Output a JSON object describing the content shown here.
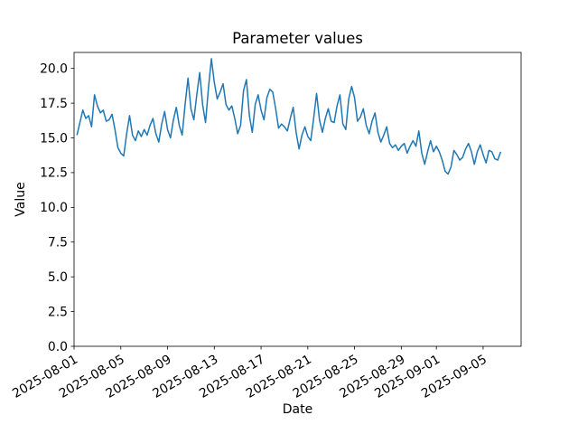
{
  "figure": {
    "background": "#ffffff"
  },
  "chart_data": {
    "type": "line",
    "title": "Parameter values",
    "xlabel": "Date",
    "ylabel": "Value",
    "grid": false,
    "legend": "none",
    "xlim": [
      "2025-08-01T00:00:00Z",
      "2025-09-08T06:00:00Z"
    ],
    "ylim": [
      0,
      21.15
    ],
    "x_tick_rotation_deg": 30,
    "x_tick_dates": [
      "2025-08-01",
      "2025-08-05",
      "2025-08-09",
      "2025-08-13",
      "2025-08-17",
      "2025-08-21",
      "2025-08-25",
      "2025-08-29",
      "2025-09-01",
      "2025-09-05"
    ],
    "y_ticks": [
      0,
      2.5,
      5,
      7.5,
      10,
      12.5,
      15,
      17.5,
      20
    ],
    "y_tick_labels": [
      "0.0",
      "2.5",
      "5.0",
      "7.5",
      "10.0",
      "12.5",
      "15.0",
      "17.5",
      "20.0"
    ],
    "series": [
      {
        "name": "Parameter values",
        "color": "#1f77b4",
        "line_width": 1.5,
        "start": "2025-08-01T06:00:00Z",
        "step_hours": 6,
        "values": [
          15.2,
          16.1,
          17.0,
          16.4,
          16.6,
          15.8,
          18.1,
          17.3,
          16.8,
          17.0,
          16.2,
          16.3,
          16.7,
          15.6,
          14.3,
          13.9,
          13.7,
          15.3,
          16.6,
          15.2,
          14.8,
          15.5,
          15.1,
          15.6,
          15.2,
          15.9,
          16.4,
          15.3,
          14.7,
          16.0,
          16.9,
          15.6,
          15.0,
          16.3,
          17.2,
          15.9,
          15.2,
          17.4,
          19.3,
          17.1,
          16.3,
          18.1,
          19.7,
          17.4,
          16.1,
          18.6,
          20.7,
          19.0,
          17.8,
          18.3,
          18.9,
          17.4,
          17.0,
          17.3,
          16.4,
          15.3,
          15.9,
          18.4,
          19.2,
          16.6,
          15.4,
          17.4,
          18.1,
          17.0,
          16.3,
          17.9,
          18.5,
          18.3,
          17.1,
          15.7,
          16.0,
          15.8,
          15.5,
          16.4,
          17.2,
          15.4,
          14.2,
          15.2,
          15.8,
          15.1,
          14.8,
          16.4,
          18.2,
          16.3,
          15.4,
          16.4,
          17.1,
          16.2,
          16.1,
          17.3,
          18.1,
          16.0,
          15.6,
          17.8,
          18.7,
          17.9,
          16.2,
          16.5,
          17.1,
          15.9,
          15.3,
          16.2,
          16.8,
          15.4,
          14.7,
          15.2,
          15.8,
          14.6,
          14.3,
          14.5,
          14.1,
          14.4,
          14.6,
          13.9,
          14.4,
          14.8,
          14.4,
          15.5,
          13.9,
          13.1,
          14.0,
          14.8,
          14.0,
          14.4,
          14.0,
          13.4,
          12.6,
          12.4,
          12.9,
          14.1,
          13.8,
          13.4,
          13.6,
          14.2,
          14.6,
          14.0,
          13.1,
          14.0,
          14.5,
          13.8,
          13.2,
          14.1,
          14.0,
          13.5,
          13.4,
          14.0
        ]
      }
    ]
  }
}
